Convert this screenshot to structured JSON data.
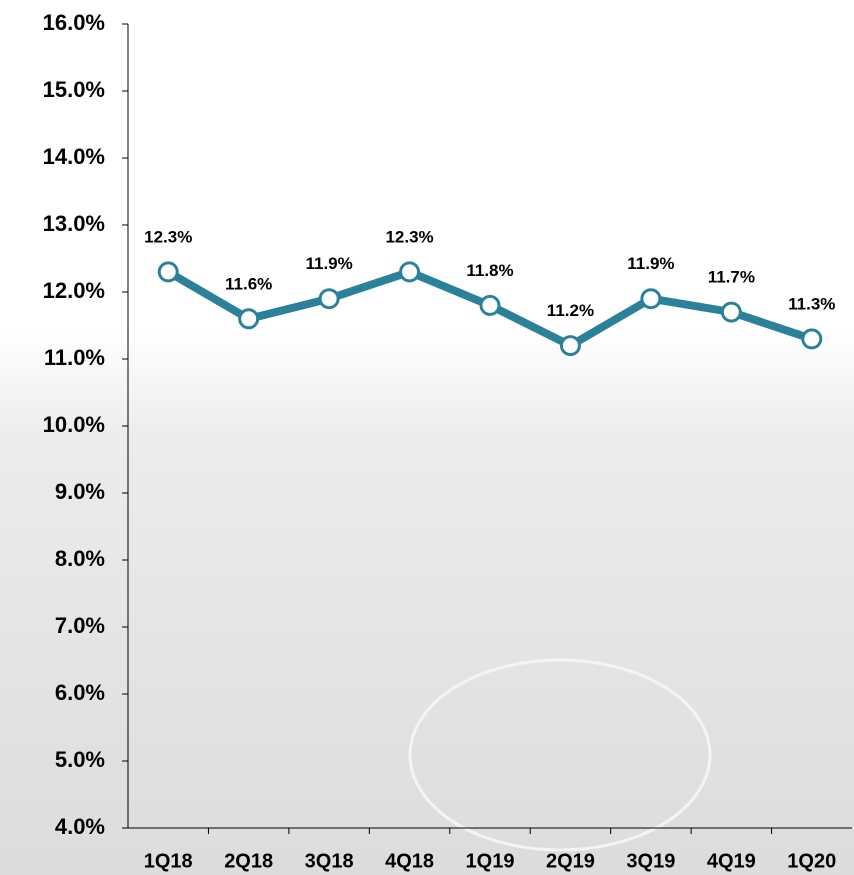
{
  "chart_data": {
    "type": "line",
    "categories": [
      "1Q18",
      "2Q18",
      "3Q18",
      "4Q18",
      "1Q19",
      "2Q19",
      "3Q19",
      "4Q19",
      "1Q20"
    ],
    "series": [
      {
        "color": "#2b8199",
        "values": [
          12.3,
          11.6,
          11.9,
          12.3,
          11.8,
          11.2,
          11.9,
          11.7,
          11.3
        ],
        "value_labels": [
          "12.3%",
          "11.6%",
          "11.9%",
          "12.3%",
          "11.8%",
          "11.2%",
          "11.9%",
          "11.7%",
          "11.3%"
        ]
      }
    ],
    "ylim": [
      4,
      16
    ],
    "yticks": [
      {
        "value": 4,
        "label": "4.0%"
      },
      {
        "value": 5,
        "label": "5.0%"
      },
      {
        "value": 6,
        "label": "6.0%"
      },
      {
        "value": 7,
        "label": "7.0%"
      },
      {
        "value": 8,
        "label": "8.0%"
      },
      {
        "value": 9,
        "label": "9.0%"
      },
      {
        "value": 10,
        "label": "10.0%"
      },
      {
        "value": 11,
        "label": "11.0%"
      },
      {
        "value": 12,
        "label": "12.0%"
      },
      {
        "value": 13,
        "label": "13.0%"
      },
      {
        "value": 14,
        "label": "14.0%"
      },
      {
        "value": 15,
        "label": "15.0%"
      },
      {
        "value": 16,
        "label": "16.0%"
      }
    ],
    "grid": false
  }
}
